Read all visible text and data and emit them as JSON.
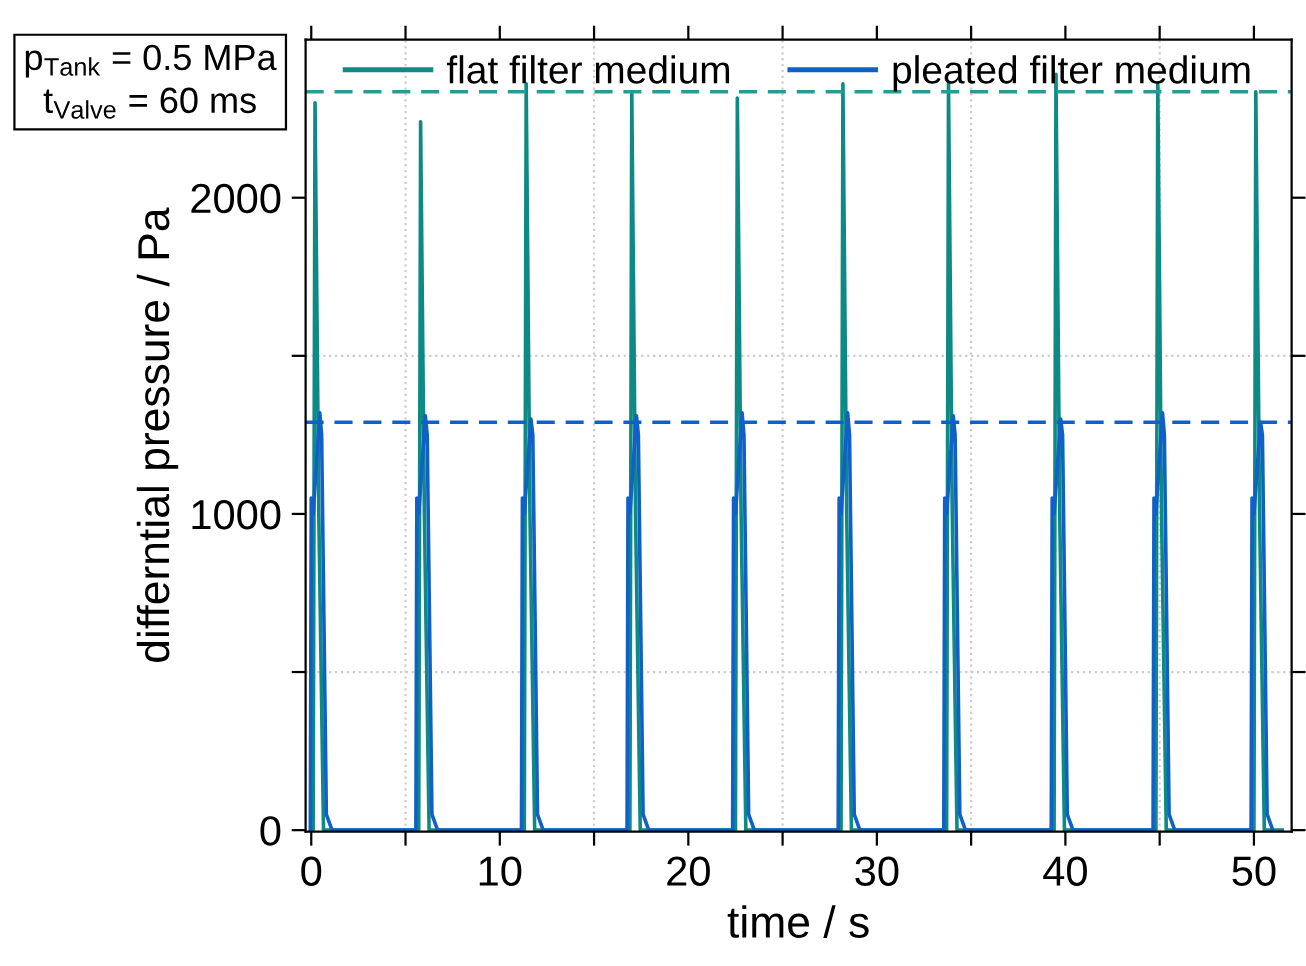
{
  "chart_data": {
    "type": "line",
    "xlabel": "time / s",
    "ylabel": "differntial pressure / Pa",
    "annotations": [
      "p$_{Tank}$ = 0.5 MPa",
      "t$_{Valve}$ = 60 ms"
    ],
    "xlim": [
      -0.3,
      52
    ],
    "ylim": [
      -5,
      2500
    ],
    "xticks": [
      0,
      {
        "value": 5,
        "label": null
      },
      10,
      {
        "value": 15,
        "label": null
      },
      20,
      {
        "value": 25,
        "label": null
      },
      30,
      {
        "value": 35,
        "label": null
      },
      40,
      {
        "value": 45,
        "label": null
      },
      50
    ],
    "yticks": [
      0,
      {
        "value": 500,
        "label": null
      },
      1000,
      {
        "value": 1500,
        "label": null
      },
      2000
    ],
    "grid": true,
    "legend": "top",
    "marker": "none",
    "line_style": "solid",
    "series": [
      {
        "name": "flat filter medium",
        "color": "#0e8a84",
        "x": [
          0.0,
          0.1,
          0.2,
          0.4,
          0.65,
          5.7,
          5.8,
          6.0,
          6.25,
          11.3,
          11.4,
          11.6,
          11.85,
          16.9,
          17.0,
          17.2,
          17.45,
          22.5,
          22.6,
          22.8,
          23.05,
          28.1,
          28.2,
          28.4,
          28.65,
          33.7,
          33.8,
          34.0,
          34.25,
          39.4,
          39.5,
          39.7,
          39.95,
          44.8,
          44.9,
          45.1,
          45.35,
          50.0,
          50.1,
          50.3,
          50.55,
          51.5
        ],
        "values": [
          0,
          0,
          2300,
          1000,
          0,
          0,
          2240,
          1000,
          0,
          0,
          2360,
          1000,
          0,
          0,
          2335,
          1000,
          0,
          0,
          2315,
          1000,
          0,
          0,
          2360,
          1000,
          0,
          0,
          2360,
          1000,
          0,
          0,
          2390,
          1000,
          0,
          0,
          2360,
          1000,
          0,
          0,
          2335,
          1000,
          0,
          0
        ]
      },
      {
        "name": "pleated filter medium",
        "color": "#1060c8",
        "x": [
          -0.05,
          0.0,
          0.1,
          0.45,
          0.55,
          0.8,
          1.1,
          5.55,
          5.6,
          5.7,
          6.05,
          6.15,
          6.4,
          6.7,
          11.15,
          11.2,
          11.3,
          11.65,
          11.75,
          12.0,
          12.3,
          16.75,
          16.8,
          16.9,
          17.25,
          17.35,
          17.6,
          17.9,
          22.35,
          22.4,
          22.5,
          22.85,
          22.95,
          23.2,
          23.5,
          27.95,
          28.0,
          28.1,
          28.45,
          28.55,
          28.8,
          29.1,
          33.55,
          33.6,
          33.7,
          34.05,
          34.15,
          34.4,
          34.7,
          39.25,
          39.3,
          39.4,
          39.75,
          39.85,
          40.1,
          40.4,
          44.65,
          44.7,
          44.8,
          45.15,
          45.25,
          45.5,
          45.8,
          49.85,
          49.9,
          50.0,
          50.35,
          50.45,
          50.7,
          51.0
        ],
        "values": [
          0,
          1050,
          1000,
          1320,
          1250,
          50,
          0,
          0,
          1050,
          1000,
          1310,
          1250,
          50,
          0,
          0,
          1050,
          1000,
          1300,
          1250,
          50,
          0,
          0,
          1050,
          1000,
          1310,
          1250,
          50,
          0,
          0,
          1050,
          1000,
          1320,
          1250,
          50,
          0,
          0,
          1050,
          1000,
          1320,
          1250,
          50,
          0,
          0,
          1050,
          1000,
          1310,
          1250,
          50,
          0,
          0,
          1050,
          1000,
          1300,
          1250,
          50,
          0,
          0,
          1050,
          1000,
          1320,
          1250,
          50,
          0,
          0,
          1050,
          1000,
          1290,
          1250,
          50,
          0
        ]
      }
    ],
    "ref_lines": [
      {
        "axis": "y",
        "value": 2335,
        "color": "#2a9a94",
        "line_style": "dashed"
      },
      {
        "axis": "y",
        "value": 1290,
        "color": "#1060c8",
        "line_style": "dashed"
      }
    ]
  }
}
